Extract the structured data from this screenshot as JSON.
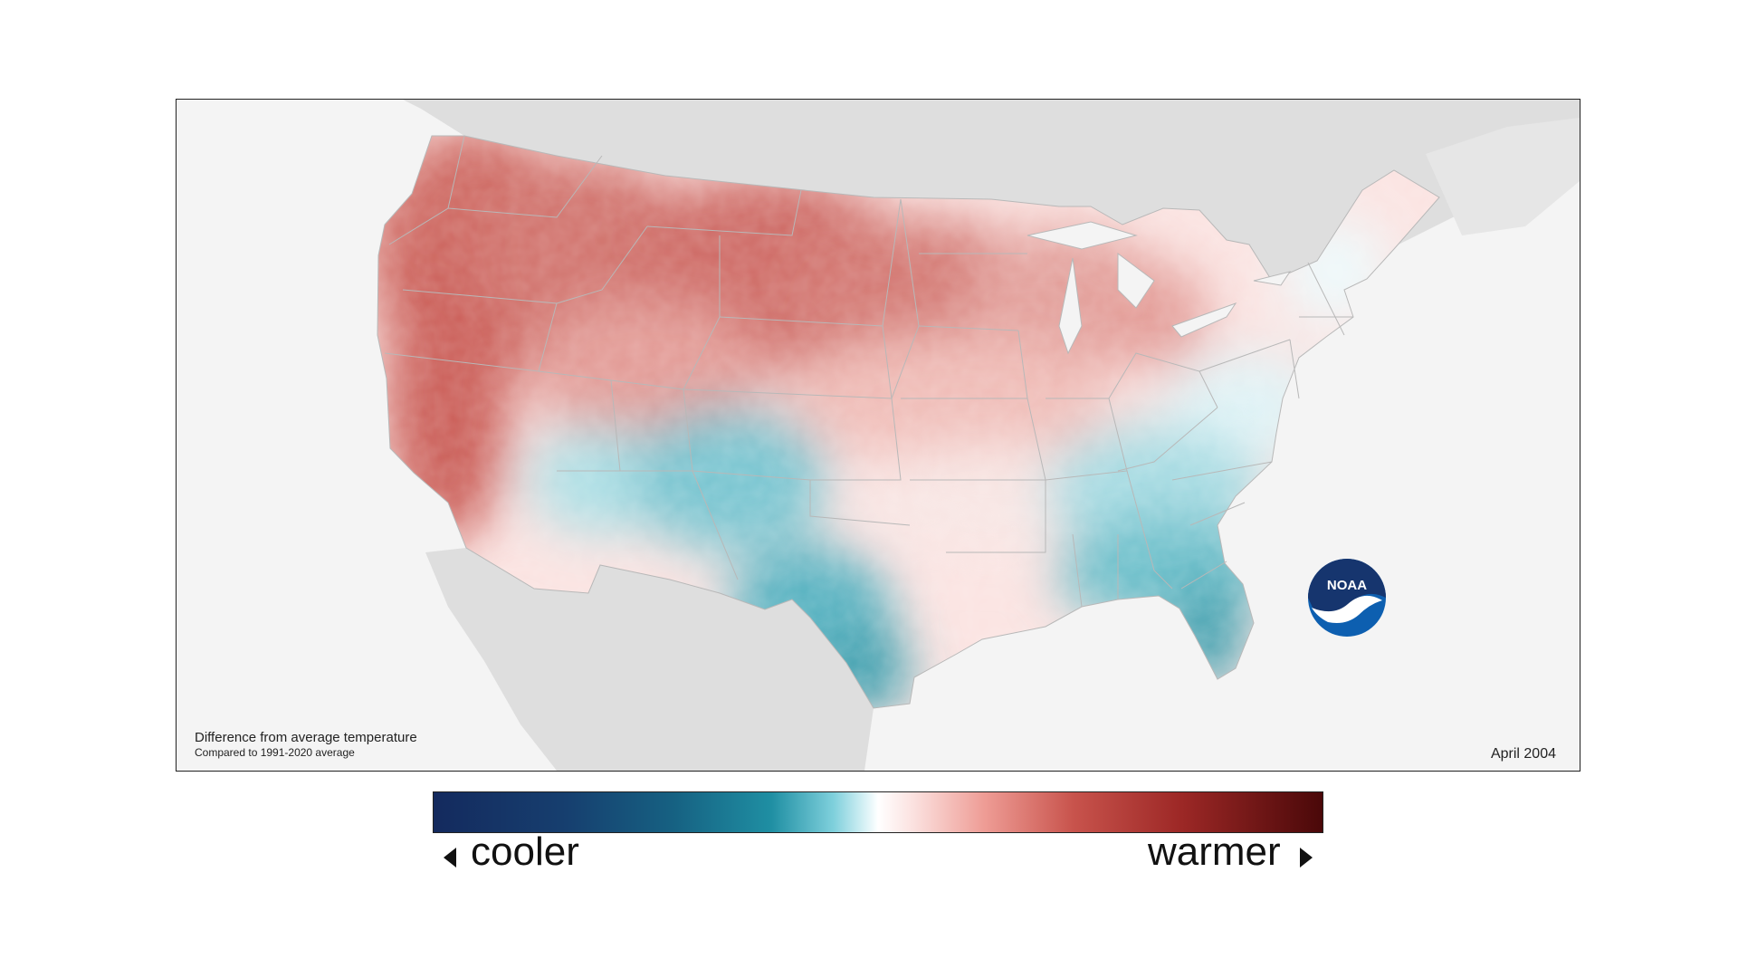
{
  "map": {
    "caption_title": "Difference from average temperature",
    "caption_subtitle": "Compared to 1991-2020 average",
    "date": "April 2004",
    "logo_text": "NOAA",
    "background_color": "#f4f4f4",
    "land_outside_color": "#dedede",
    "ocean_color": "#f4f4f4"
  },
  "legend": {
    "left_label": "cooler",
    "right_label": "warmer",
    "colors": [
      "#142a5e",
      "#166182",
      "#1f8fa3",
      "#e4f6f9",
      "#ffffff",
      "#fbe1df",
      "#c8534c",
      "#4a0809"
    ]
  },
  "regions": {
    "northwest": "warmer",
    "northern_plains": "warmer",
    "great_lakes": "warmer",
    "southwest": "cooler",
    "texas": "cooler",
    "southeast": "cooler",
    "florida": "cooler",
    "northeast": "near average"
  }
}
